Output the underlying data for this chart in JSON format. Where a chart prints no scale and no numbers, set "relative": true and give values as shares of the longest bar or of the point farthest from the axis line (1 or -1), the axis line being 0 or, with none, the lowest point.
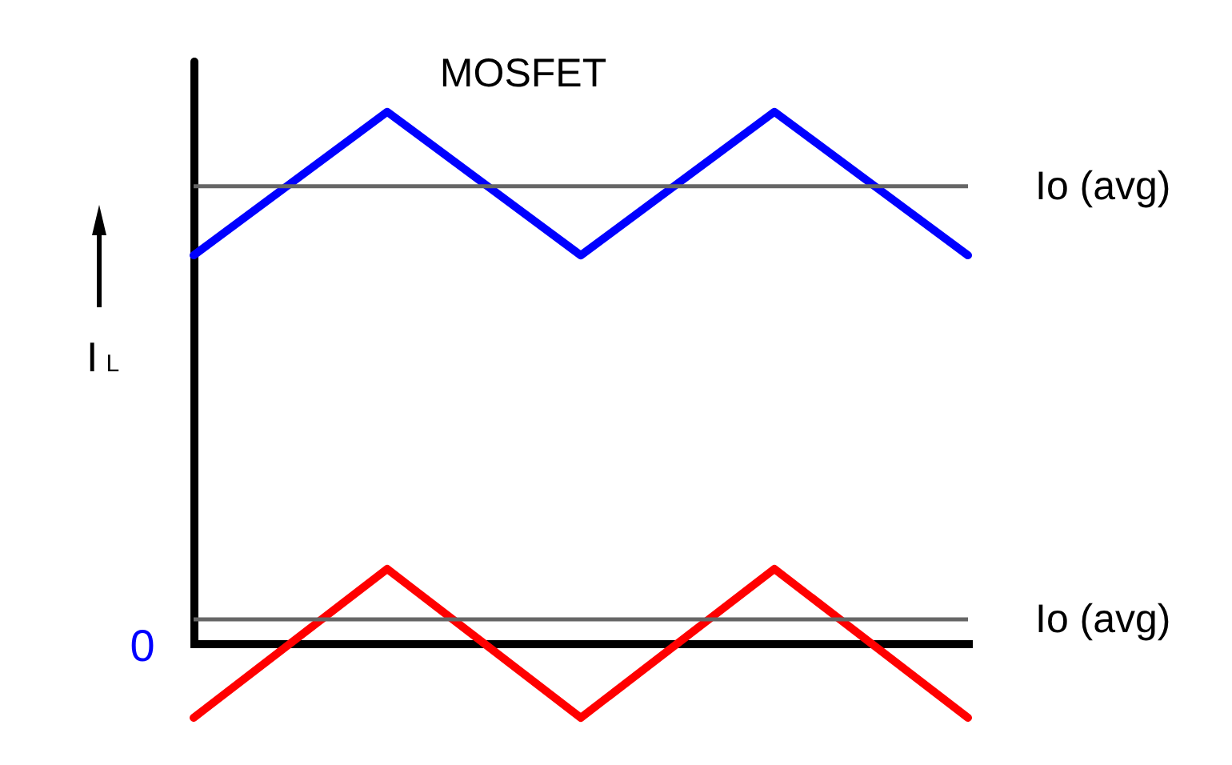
{
  "chart_data": {
    "type": "line",
    "title": "MOSFET",
    "ylabel": "I$_{L}$",
    "relative": true,
    "categories": [
      null,
      null,
      null,
      null,
      null
    ],
    "series": [
      {
        "color": "#0000ff",
        "values": [
          0.73,
          1,
          0.73,
          1,
          0.73
        ]
      },
      {
        "color": "#ff0000",
        "values": [
          -0.14,
          0.14,
          -0.14,
          0.14,
          -0.14
        ]
      }
    ],
    "ref_lines": [
      {
        "axis": "y",
        "value": 0.86,
        "label": "Io (avg)",
        "color": "#666666"
      },
      {
        "axis": "y",
        "value": 0.045,
        "label": "Io (avg)",
        "color": "#666666"
      }
    ],
    "annotations": [
      "0"
    ]
  }
}
